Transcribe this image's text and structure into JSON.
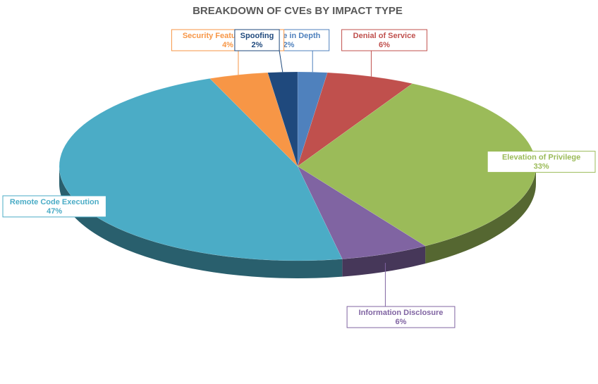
{
  "chart_data": {
    "type": "pie",
    "title": "BREAKDOWN OF CVEs BY IMPACT TYPE",
    "slices": [
      {
        "name": "Defense in Depth",
        "value": 2,
        "pct_label": "2%",
        "color": "#4F81BD"
      },
      {
        "name": "Denial of Service",
        "value": 6,
        "pct_label": "6%",
        "color": "#C0504D"
      },
      {
        "name": "Elevation of Privilege",
        "value": 33,
        "pct_label": "33%",
        "color": "#9BBB59"
      },
      {
        "name": "Information Disclosure",
        "value": 6,
        "pct_label": "6%",
        "color": "#8064A2"
      },
      {
        "name": "Remote Code Execution",
        "value": 47,
        "pct_label": "47%",
        "color": "#4BACC6"
      },
      {
        "name": "Security Feature Bypass",
        "value": 4,
        "pct_label": "4%",
        "color": "#F79646"
      },
      {
        "name": "Spoofing",
        "value": 2,
        "pct_label": "2%",
        "color": "#1F497D"
      }
    ],
    "style": "3d-pie",
    "legend": "none",
    "data_labels": "callouts"
  }
}
